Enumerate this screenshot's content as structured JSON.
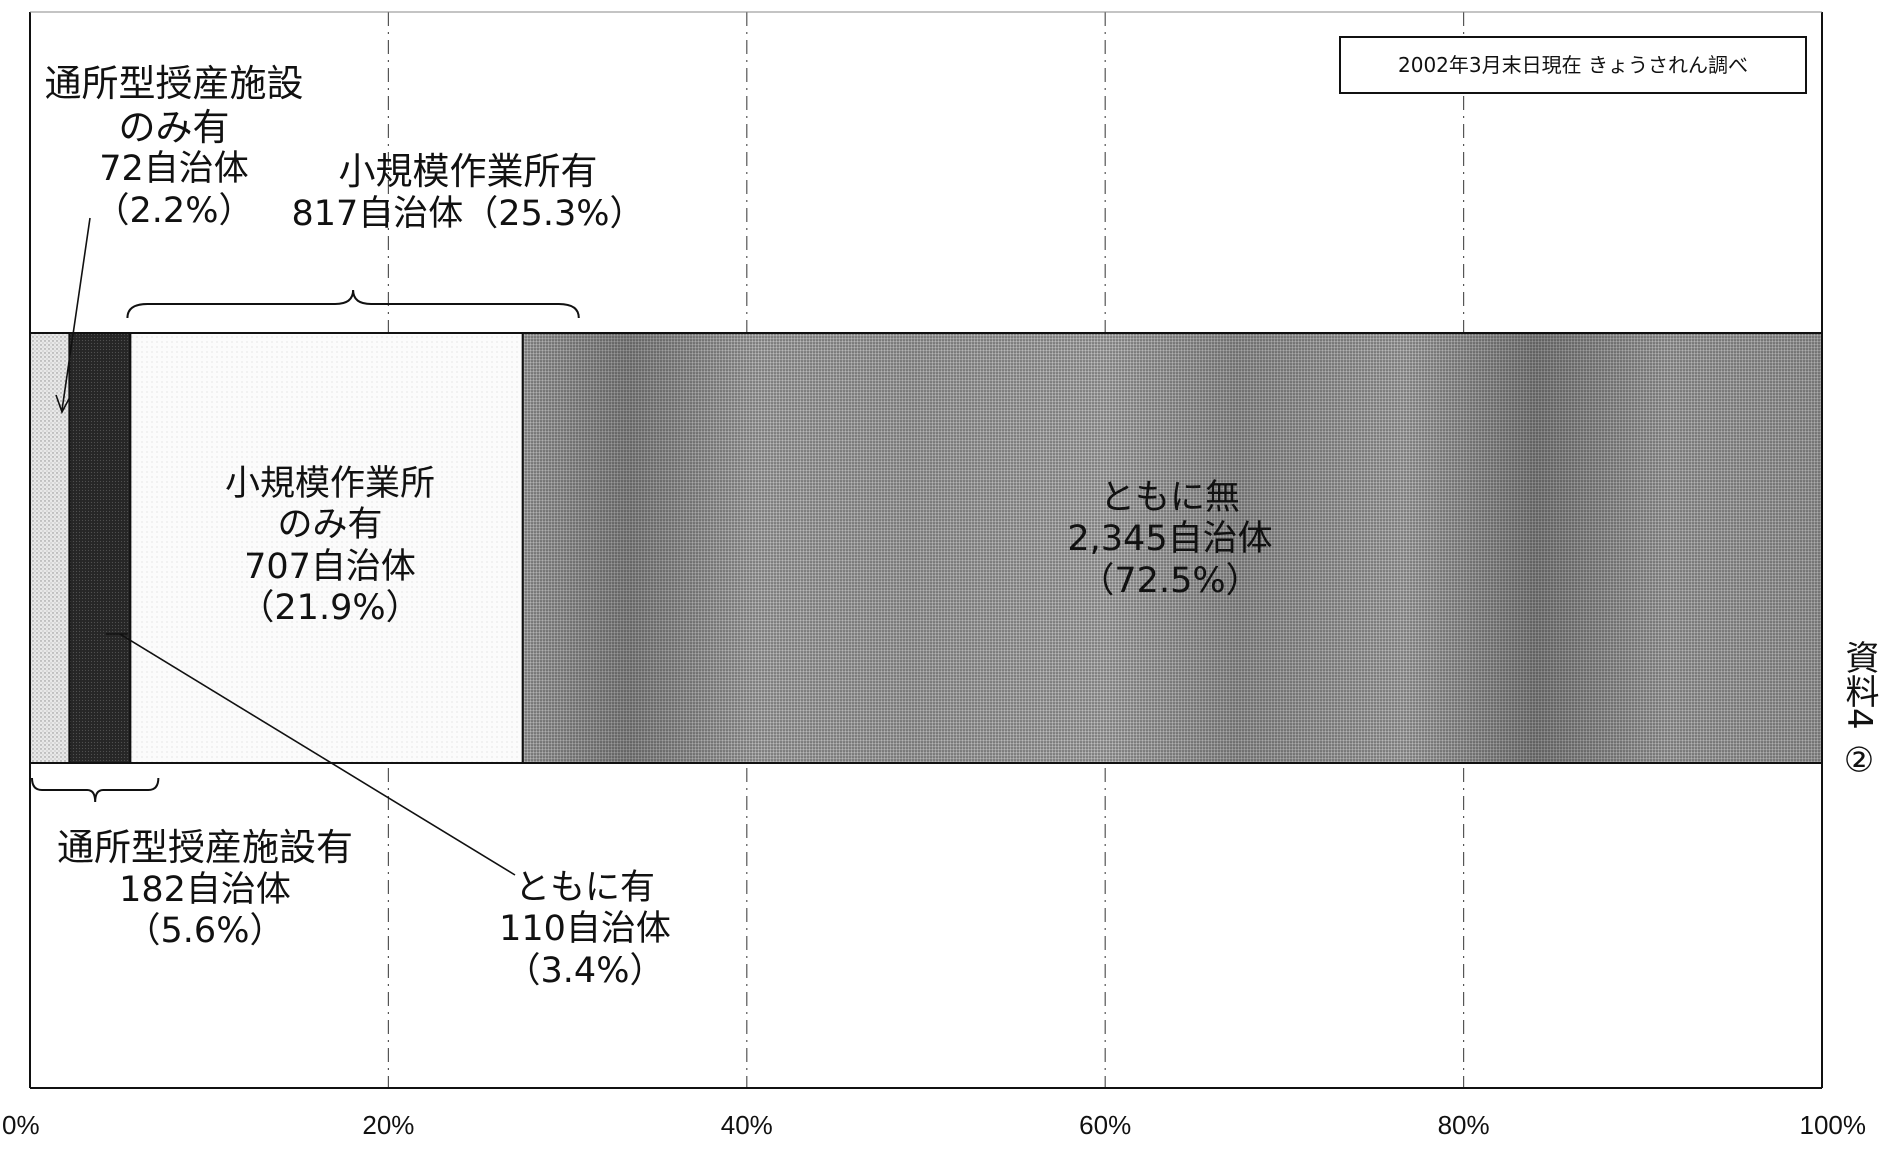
{
  "chart_data": {
    "type": "bar",
    "orientation": "horizontal-stacked-100",
    "xlim": [
      0,
      100
    ],
    "x_ticks": [
      "0%",
      "20%",
      "40%",
      "60%",
      "80%",
      "100%"
    ],
    "grid": true,
    "segments": [
      {
        "name": "通所型授産施設のみ有",
        "count": 72,
        "percent": 2.2,
        "color": "#d9d9d9"
      },
      {
        "name": "ともに有",
        "count": 110,
        "percent": 3.4,
        "color": "#1f1f1f"
      },
      {
        "name": "小規模作業所のみ有",
        "count": 707,
        "percent": 21.9,
        "color": "#f4f4f4"
      },
      {
        "name": "ともに無",
        "count": 2345,
        "percent": 72.5,
        "color": "#9a9a9a"
      }
    ],
    "groups": [
      {
        "name": "小規模作業所有",
        "count": 817,
        "percent": 25.3,
        "range": [
          2.2,
          27.5
        ],
        "bracket": "above"
      },
      {
        "name": "通所型授産施設有",
        "count": 182,
        "percent": 5.6,
        "range": [
          0,
          5.6
        ],
        "bracket": "below"
      }
    ],
    "labels": {
      "only_center_line1": "通所型授産施設",
      "only_center_line2": "のみ有",
      "only_center_count": "72自治体",
      "only_center_pct": "（2.2%）",
      "small_group_line1": "小規模作業所有",
      "small_group_line2": "817自治体（25.3%）",
      "small_only_line1": "小規模作業所",
      "small_only_line2": "のみ有",
      "small_only_count": "707自治体",
      "small_only_pct": "（21.9%）",
      "none_line1": "ともに無",
      "none_count": "2,345自治体",
      "none_pct": "（72.5%）",
      "center_group_line1": "通所型授産施設有",
      "center_group_count": "182自治体",
      "center_group_pct": "（5.6%）",
      "both_line1": "ともに有",
      "both_count": "110自治体",
      "both_pct": "（3.4%）"
    },
    "source_note": "2002年3月末日現在 きょうされん調べ",
    "side_text": "資料4 ②"
  }
}
